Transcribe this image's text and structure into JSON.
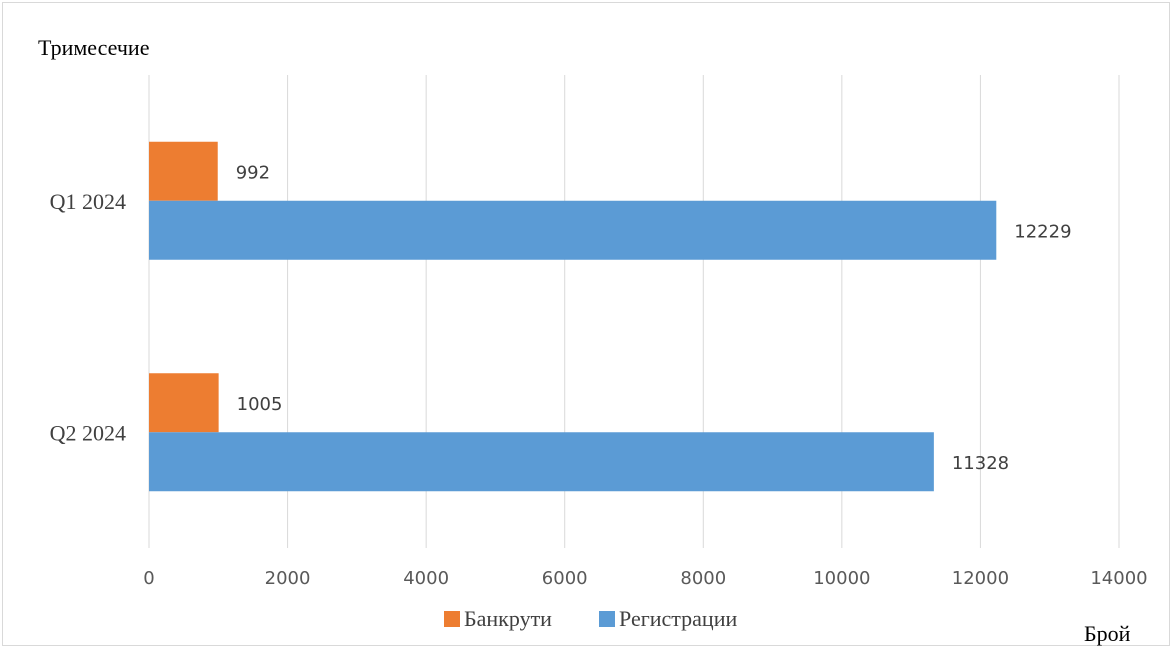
{
  "chart_data": {
    "type": "bar",
    "orientation": "horizontal",
    "title": "",
    "ylabel": "Тримесечие",
    "xlabel": "Брой",
    "categories": [
      "Q1 2024",
      "Q2 2024"
    ],
    "series": [
      {
        "name": "Банкрути",
        "color": "#ed7d31",
        "values": [
          992,
          1005
        ]
      },
      {
        "name": "Регистрации",
        "color": "#5b9bd5",
        "values": [
          12229,
          11328
        ]
      }
    ],
    "xlim": [
      0,
      14000
    ],
    "xticks": [
      0,
      2000,
      4000,
      6000,
      8000,
      10000,
      12000,
      14000
    ],
    "grid": true,
    "legend_position": "bottom",
    "data_labels": true
  }
}
